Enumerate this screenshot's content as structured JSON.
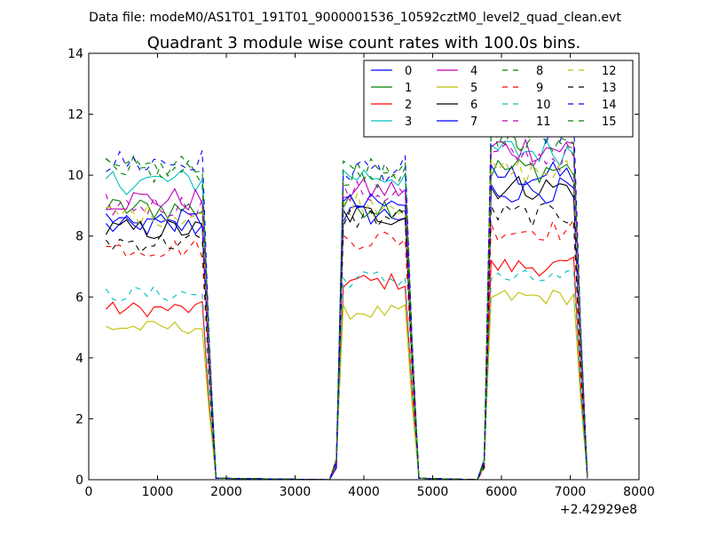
{
  "figure": {
    "suptitle": "Data file: modeM0/AS1T01_191T01_9000001536_10592cztM0_level2_quad_clean.evt",
    "title": "Quadrant 3 module wise count rates with 100.0s bins.",
    "x_offset_label": "+2.42929e8"
  },
  "chart_data": {
    "type": "line",
    "title": "Quadrant 3 module wise count rates with 100.0s bins.",
    "xlabel": "",
    "ylabel": "",
    "xlim": [
      0,
      8000
    ],
    "ylim": [
      0,
      14
    ],
    "x_offset": "+2.42929e8",
    "x_ticks": [
      "0",
      "1000",
      "2000",
      "3000",
      "4000",
      "5000",
      "6000",
      "7000",
      "8000"
    ],
    "y_ticks": [
      "0",
      "2",
      "4",
      "6",
      "8",
      "10",
      "12",
      "14"
    ],
    "grid": false,
    "legend_position": "top-right",
    "legend_columns": 4,
    "segments": [
      {
        "x_start": 250,
        "x_end": 1850,
        "bin_width": 100
      },
      {
        "x_start": 3600,
        "x_end": 4750,
        "bin_width": 100
      },
      {
        "x_start": 5750,
        "x_end": 7200,
        "bin_width": 100
      }
    ],
    "series": [
      {
        "name": "0",
        "color": "#0000ff",
        "dash": "solid",
        "plateau_levels": [
          8.3,
          8.7,
          10.0
        ]
      },
      {
        "name": "1",
        "color": "#008000",
        "dash": "solid",
        "plateau_levels": [
          8.9,
          9.0,
          10.2
        ]
      },
      {
        "name": "2",
        "color": "#ff0000",
        "dash": "solid",
        "plateau_levels": [
          5.6,
          6.5,
          7.0
        ]
      },
      {
        "name": "3",
        "color": "#00bfbf",
        "dash": "solid",
        "plateau_levels": [
          9.8,
          10.0,
          10.8
        ]
      },
      {
        "name": "4",
        "color": "#bf00bf",
        "dash": "solid",
        "plateau_levels": [
          9.2,
          9.5,
          10.9
        ]
      },
      {
        "name": "5",
        "color": "#bfbf00",
        "dash": "solid",
        "plateau_levels": [
          5.0,
          5.5,
          6.0
        ]
      },
      {
        "name": "6",
        "color": "#000000",
        "dash": "solid",
        "plateau_levels": [
          8.2,
          8.7,
          9.6
        ]
      },
      {
        "name": "7",
        "color": "#0000ff",
        "dash": "solid",
        "plateau_levels": [
          8.5,
          9.0,
          9.5
        ]
      },
      {
        "name": "8",
        "color": "#008000",
        "dash": "dashed",
        "plateau_levels": [
          10.1,
          10.0,
          11.3
        ]
      },
      {
        "name": "9",
        "color": "#ff0000",
        "dash": "dashed",
        "plateau_levels": [
          7.6,
          7.9,
          8.2
        ]
      },
      {
        "name": "10",
        "color": "#00bfbf",
        "dash": "dashed",
        "plateau_levels": [
          6.1,
          6.6,
          6.6
        ]
      },
      {
        "name": "11",
        "color": "#bf00bf",
        "dash": "dashed",
        "plateau_levels": [
          9.0,
          9.4,
          10.6
        ]
      },
      {
        "name": "12",
        "color": "#bfbf00",
        "dash": "dashed",
        "plateau_levels": [
          8.7,
          9.1,
          10.1
        ]
      },
      {
        "name": "13",
        "color": "#000000",
        "dash": "dashed",
        "plateau_levels": [
          7.8,
          8.6,
          8.7
        ]
      },
      {
        "name": "14",
        "color": "#0000ff",
        "dash": "dashed",
        "plateau_levels": [
          10.4,
          10.2,
          11.5
        ]
      },
      {
        "name": "15",
        "color": "#008000",
        "dash": "dashed",
        "plateau_levels": [
          10.2,
          10.1,
          11.2
        ]
      }
    ]
  }
}
